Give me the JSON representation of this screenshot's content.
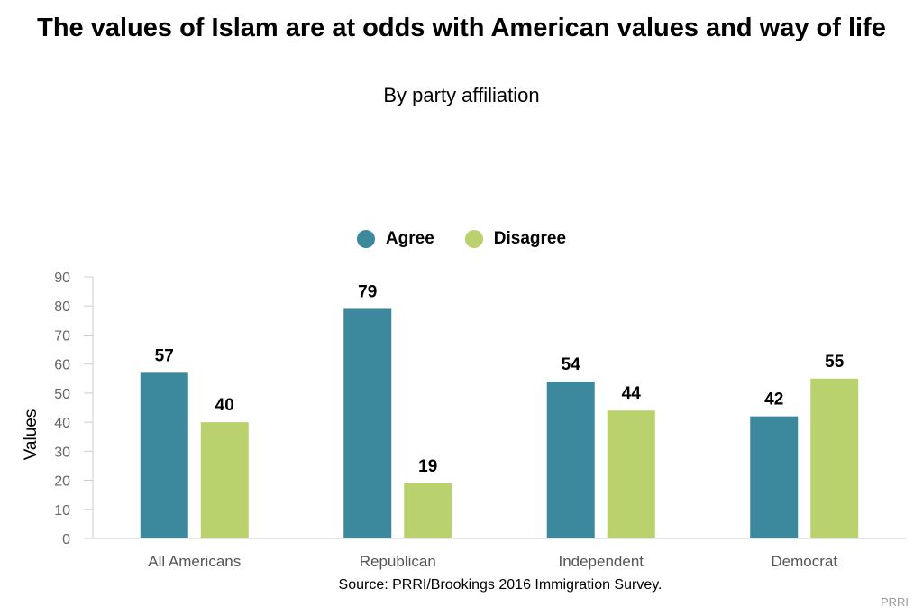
{
  "chart_data": {
    "type": "bar",
    "title": "The values of Islam are at odds with American values and way of life",
    "subtitle": "By party affiliation",
    "ylabel": "Values",
    "xlabel": "",
    "ylim": [
      0,
      90
    ],
    "yticks": [
      0,
      10,
      20,
      30,
      40,
      50,
      60,
      70,
      80,
      90
    ],
    "categories": [
      "All Americans",
      "Republican",
      "Independent",
      "Democrat"
    ],
    "series": [
      {
        "name": "Agree",
        "color": "#3c889d",
        "values": [
          57,
          79,
          54,
          42
        ]
      },
      {
        "name": "Disagree",
        "color": "#b9d26d",
        "values": [
          40,
          19,
          44,
          55
        ]
      }
    ],
    "legend_position": "top-center",
    "grid": false
  },
  "source": "Source: PRRI/Brookings 2016 Immigration Survey.",
  "credit": "PRRI"
}
